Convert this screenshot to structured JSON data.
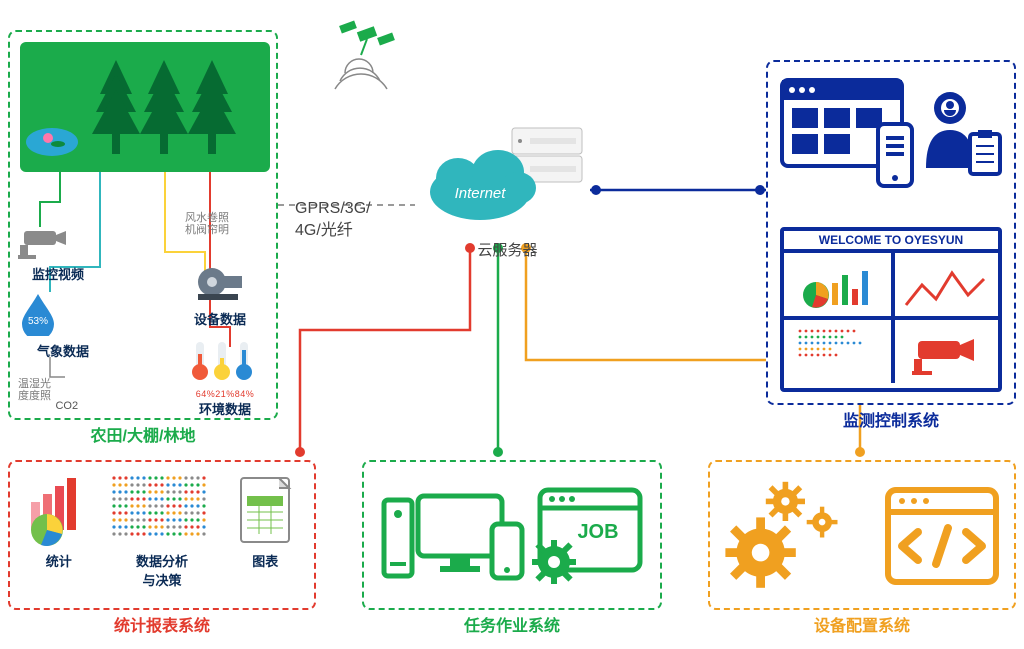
{
  "network_label": "GPRS/3G/\n4G/光纤",
  "cloud": {
    "word": "Internet",
    "caption": "云服务器"
  },
  "panel_field": {
    "title": "农田/大棚/林地",
    "color": "#1bab4b",
    "video_label": "监控视频",
    "weather_label": "气象数据",
    "weather_sub": "温湿光\n度度照",
    "co2_label": "CO2",
    "humidity_value": "53%",
    "device_label": "设备数据",
    "device_sub": "风水卷照\n机阀帘明",
    "env_label": "环境数据",
    "env_values": "64%21%84%"
  },
  "panel_monitor": {
    "title": "监测控制系统",
    "color": "#0b2b9b",
    "welcome": "WELCOME TO OYESYUN"
  },
  "panel_stats": {
    "title": "统计报表系统",
    "color": "#e23b2e",
    "item1": "统计",
    "item2": "数据分析\n与决策",
    "item3": "图表"
  },
  "panel_task": {
    "title": "任务作业系统",
    "color": "#1bab4b",
    "job_word": "JOB"
  },
  "panel_config": {
    "title": "设备配置系统",
    "color": "#f0a020"
  },
  "wires": {
    "green": "#1bab4b",
    "red": "#e23b2e",
    "orange": "#f0a020",
    "blue": "#0b2b9b",
    "cyan": "#30b6bd",
    "yellow": "#fbd23a"
  }
}
